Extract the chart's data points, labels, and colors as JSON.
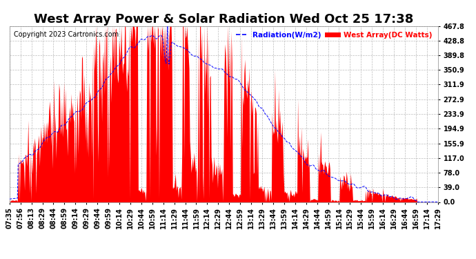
{
  "title": "West Array Power & Solar Radiation Wed Oct 25 17:38",
  "copyright": "Copyright 2023 Cartronics.com",
  "legend_radiation": "Radiation(W/m2)",
  "legend_west": "West Array(DC Watts)",
  "background_color": "#ffffff",
  "plot_bg_color": "#ffffff",
  "grid_color": "#bbbbbb",
  "y_ticks": [
    0.0,
    39.0,
    78.0,
    117.0,
    155.9,
    194.9,
    233.9,
    272.9,
    311.9,
    350.9,
    389.8,
    428.8,
    467.8
  ],
  "y_max": 467.8,
  "y_min": 0.0,
  "x_tick_labels": [
    "07:35",
    "07:56",
    "08:13",
    "08:29",
    "08:44",
    "08:59",
    "09:14",
    "09:29",
    "09:44",
    "09:59",
    "10:14",
    "10:29",
    "10:44",
    "10:59",
    "11:14",
    "11:29",
    "11:44",
    "11:59",
    "12:14",
    "12:29",
    "12:44",
    "12:59",
    "13:14",
    "13:29",
    "13:44",
    "13:59",
    "14:14",
    "14:29",
    "14:44",
    "14:59",
    "15:14",
    "15:29",
    "15:44",
    "15:59",
    "16:14",
    "16:29",
    "16:44",
    "16:59",
    "17:14",
    "17:29"
  ],
  "title_fontsize": 13,
  "tick_fontsize": 7,
  "copyright_fontsize": 7
}
